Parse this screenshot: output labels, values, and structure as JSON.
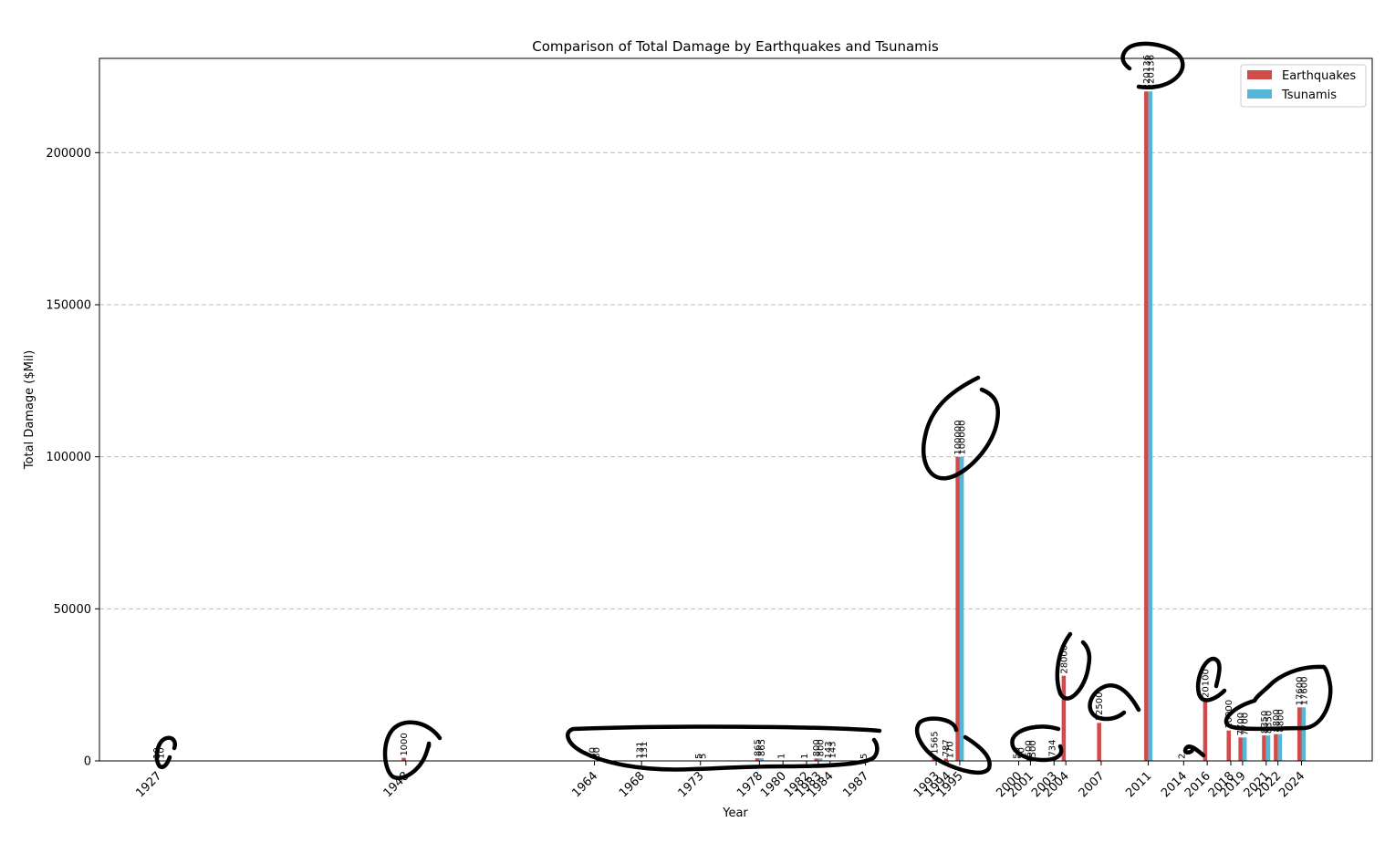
{
  "colors": {
    "earthquakes": "#d24a49",
    "tsunamis": "#54b7d7",
    "grid": "#b0b0b0",
    "annotation": "#000000"
  },
  "chart_data": {
    "type": "bar",
    "title": "Comparison of Total Damage by Earthquakes and Tsunamis",
    "xlabel": "Year",
    "ylabel": "Total Damage ($Mil)",
    "ylim": [
      0,
      231000
    ],
    "xlim": [
      1922,
      2030
    ],
    "yticks": [
      0,
      50000,
      100000,
      150000,
      200000
    ],
    "grid": "y-dashed",
    "legend": {
      "position": "top-right",
      "entries": [
        "Earthquakes",
        "Tsunamis"
      ]
    },
    "series": [
      {
        "name": "Earthquakes",
        "color": "#d24a49",
        "points": [
          {
            "x": 1927,
            "y": 10
          },
          {
            "x": 1948,
            "y": 1000
          },
          {
            "x": 1964,
            "y": 80
          },
          {
            "x": 1968,
            "y": 131
          },
          {
            "x": 1973,
            "y": 5
          },
          {
            "x": 1978,
            "y": 865
          },
          {
            "x": 1980,
            "y": 1
          },
          {
            "x": 1982,
            "y": 1
          },
          {
            "x": 1983,
            "y": 800
          },
          {
            "x": 1984,
            "y": 143
          },
          {
            "x": 1987,
            "y": 5
          },
          {
            "x": 1993,
            "y": 1565
          },
          {
            "x": 1994,
            "y": 787
          },
          {
            "x": 1995,
            "y": 100000
          },
          {
            "x": 2000,
            "y": 50
          },
          {
            "x": 2001,
            "y": 500
          },
          {
            "x": 2003,
            "y": 734
          },
          {
            "x": 2004,
            "y": 28000
          },
          {
            "x": 2007,
            "y": 12500
          },
          {
            "x": 2011,
            "y": 220136
          },
          {
            "x": 2014,
            "y": 2
          },
          {
            "x": 2016,
            "y": 20100
          },
          {
            "x": 2018,
            "y": 10000
          },
          {
            "x": 2019,
            "y": 7700
          },
          {
            "x": 2021,
            "y": 8350
          },
          {
            "x": 2022,
            "y": 8800
          },
          {
            "x": 2024,
            "y": 17600
          }
        ]
      },
      {
        "name": "Tsunamis",
        "color": "#54b7d7",
        "points": [
          {
            "x": 1927,
            "y": 10
          },
          {
            "x": 1964,
            "y": 80
          },
          {
            "x": 1968,
            "y": 131
          },
          {
            "x": 1973,
            "y": 5
          },
          {
            "x": 1978,
            "y": 865
          },
          {
            "x": 1983,
            "y": 800
          },
          {
            "x": 1984,
            "y": 143
          },
          {
            "x": 1994,
            "y": 170
          },
          {
            "x": 1995,
            "y": 100000
          },
          {
            "x": 2000,
            "y": 50
          },
          {
            "x": 2001,
            "y": 500
          },
          {
            "x": 2011,
            "y": 220136
          },
          {
            "x": 2019,
            "y": 7700
          },
          {
            "x": 2021,
            "y": 8350
          },
          {
            "x": 2022,
            "y": 8800
          },
          {
            "x": 2024,
            "y": 17600
          }
        ]
      }
    ],
    "xticks": [
      1927,
      1948,
      1964,
      1968,
      1973,
      1978,
      1980,
      1982,
      1983,
      1984,
      1987,
      1993,
      1994,
      1995,
      2000,
      2001,
      2003,
      2004,
      2007,
      2011,
      2014,
      2016,
      2018,
      2019,
      2021,
      2022,
      2024
    ]
  }
}
